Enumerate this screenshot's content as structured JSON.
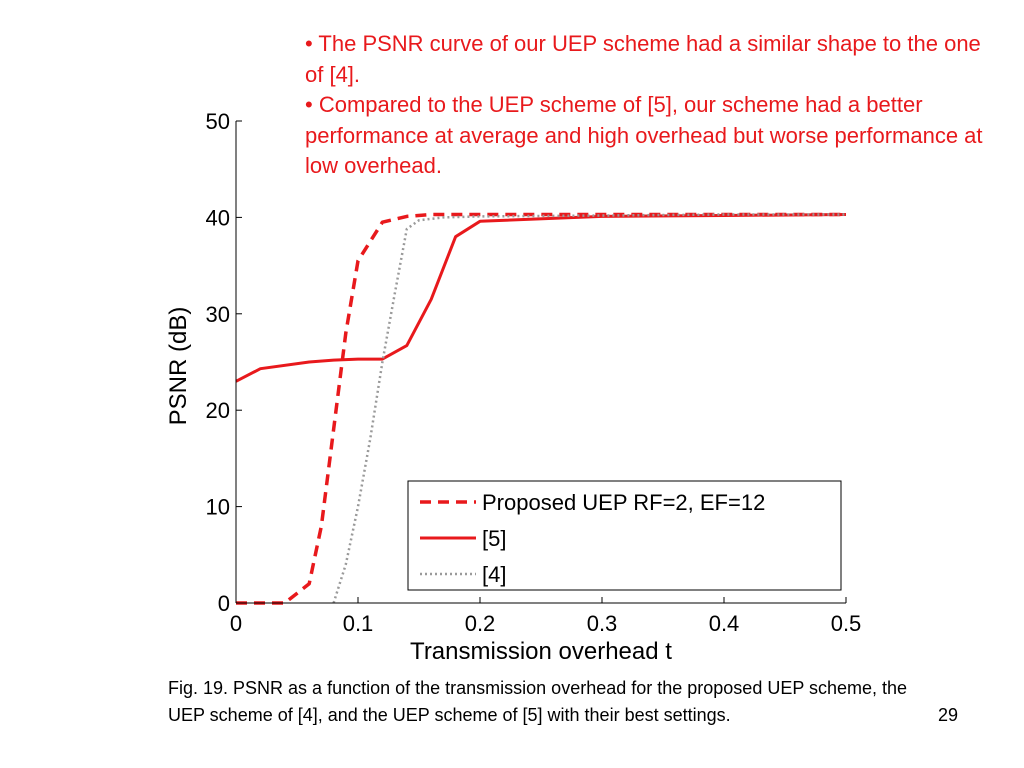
{
  "bullets": [
    "• The PSNR curve of our UEP scheme had a similar shape to the one of [4].",
    "• Compared to the UEP scheme of [5], our scheme had a better performance at average and high overhead but worse performance at low overhead."
  ],
  "chart_data": {
    "type": "line",
    "xlabel": "Transmission overhead t",
    "ylabel": "PSNR (dB)",
    "xlim": [
      0,
      0.5
    ],
    "ylim": [
      0,
      50
    ],
    "xticks": [
      "0",
      "0.1",
      "0.2",
      "0.3",
      "0.4",
      "0.5"
    ],
    "yticks": [
      "0",
      "10",
      "20",
      "30",
      "40",
      "50"
    ],
    "grid": false,
    "legend_position": "bottom-right",
    "series": [
      {
        "name": "Proposed UEP RF=2, EF=12",
        "style": "dashed",
        "color": "#e8191c",
        "x": [
          0,
          0.02,
          0.04,
          0.06,
          0.07,
          0.08,
          0.09,
          0.1,
          0.12,
          0.14,
          0.16,
          0.2,
          0.3,
          0.4,
          0.5
        ],
        "y": [
          0,
          0,
          0,
          2,
          8,
          18,
          28,
          35.5,
          39.5,
          40.1,
          40.3,
          40.3,
          40.3,
          40.3,
          40.3
        ]
      },
      {
        "name": "[5]",
        "style": "solid",
        "color": "#e8191c",
        "x": [
          0,
          0.02,
          0.06,
          0.08,
          0.1,
          0.12,
          0.14,
          0.16,
          0.18,
          0.2,
          0.3,
          0.4,
          0.5
        ],
        "y": [
          23,
          24.3,
          25,
          25.2,
          25.3,
          25.3,
          26.7,
          31.5,
          38,
          39.6,
          40.1,
          40.2,
          40.3
        ]
      },
      {
        "name": "[4]",
        "style": "dotted",
        "color": "#9a9a9a",
        "x": [
          0.08,
          0.09,
          0.1,
          0.11,
          0.12,
          0.13,
          0.14,
          0.15,
          0.17,
          0.2,
          0.3,
          0.4,
          0.5
        ],
        "y": [
          0,
          4,
          10,
          17,
          25,
          32,
          38.8,
          39.7,
          40,
          40.1,
          40.2,
          40.3,
          40.3
        ]
      }
    ]
  },
  "caption": "Fig. 19. PSNR as a function of the transmission overhead for the proposed UEP scheme, the UEP scheme of [4], and the UEP scheme of [5] with their best settings.",
  "page_number": "29"
}
